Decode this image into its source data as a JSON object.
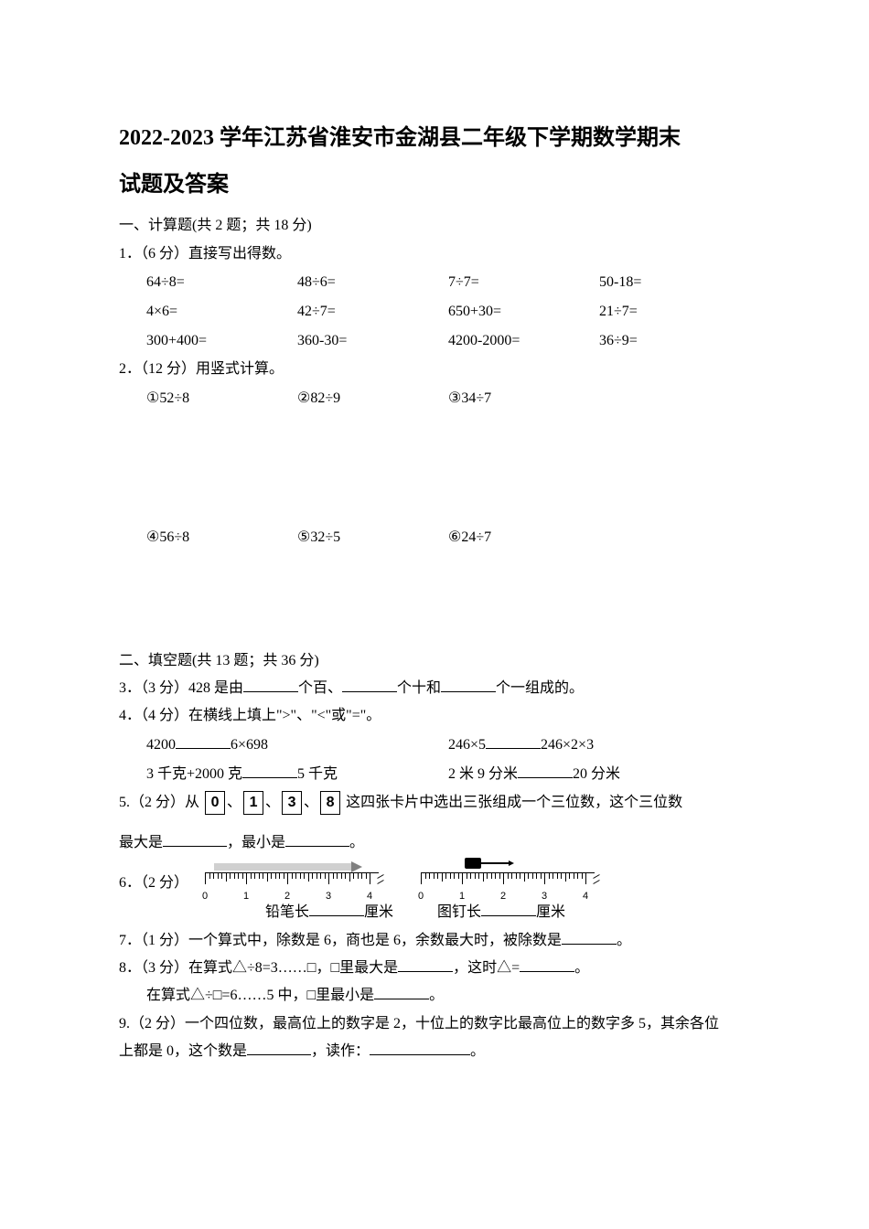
{
  "title_line1": "2022-2023 学年江苏省淮安市金湖县二年级下学期数学期末",
  "title_line2": "试题及答案",
  "section1_header": "一、计算题(共 2 题；共 18 分)",
  "q1_label": "1．（6 分）直接写出得数。",
  "q1_rows": [
    [
      "64÷8=",
      "48÷6=",
      "7÷7=",
      "50-18="
    ],
    [
      "4×6=",
      "42÷7=",
      "650+30=",
      "21÷7="
    ],
    [
      "300+400=",
      "360-30=",
      "4200-2000=",
      "36÷9="
    ]
  ],
  "q2_label": "2．（12 分）用竖式计算。",
  "q2_row1": [
    "①52÷8",
    "②82÷9",
    "③34÷7"
  ],
  "q2_row2": [
    "④56÷8",
    "⑤32÷5",
    "⑥24÷7"
  ],
  "section2_header": "二、填空题(共 13 题；共 36 分)",
  "q3_pre": "3．（3 分）428 是由",
  "q3_mid1": "个百、",
  "q3_mid2": "个十和",
  "q3_end": "个一组成的。",
  "q4_label": "4．（4 分）在横线上填上\">\"、\"<\"或\"=\"。",
  "q4_r1a_l": "4200",
  "q4_r1a_r": "6×698",
  "q4_r1b_l": "246×5",
  "q4_r1b_r": "246×2×3",
  "q4_r2a_l": "3 千克+2000 克",
  "q4_r2a_r": "5 千克",
  "q4_r2b_l": "2 米 9 分米",
  "q4_r2b_r": "20 分米",
  "q5_pre": "5.（2 分）从",
  "q5_cards": [
    "0",
    "1",
    "3",
    "8"
  ],
  "q5_post": "这四张卡片中选出三张组成一个三位数，这个三位数",
  "q5_line2_pre": "最大是",
  "q5_line2_mid": "，最小是",
  "q5_line2_end": "。",
  "q6_label": "6．（2 分）",
  "q6_ruler_labels": [
    "0",
    "1",
    "2",
    "3",
    "4"
  ],
  "q6_pencil_label_pre": "铅笔长",
  "q6_pencil_label_post": "厘米",
  "q6_pin_label_pre": "图钉长",
  "q6_pin_label_post": "厘米",
  "q7_pre": "7．（1 分）一个算式中，除数是 6，商也是 6，余数最大时，被除数是",
  "q7_end": "。",
  "q8_pre": "8．（3 分）在算式△÷8=3……□，□里最大是",
  "q8_mid": "，这时△=",
  "q8_end": "。",
  "q8_line2_pre": "在算式△÷□=6……5 中，□里最小是",
  "q8_line2_end": "。",
  "q9_line1": "9.（2 分）一个四位数，最高位上的数字是 2，十位上的数字比最高位上的数字多 5，其余各位",
  "q9_line2_pre": "上都是 0，这个数是",
  "q9_line2_mid": "，读作：",
  "q9_line2_end": "。",
  "colors": {
    "text": "#000000",
    "background": "#ffffff",
    "pencil_body": "#d0d0d0",
    "pencil_tip": "#808080"
  },
  "fonts": {
    "body_family": "SimSun",
    "body_size_pt": 12,
    "title_size_pt": 18,
    "title_weight": "bold"
  },
  "ruler": {
    "major_ticks": 5,
    "minor_per_major": 10,
    "tick_color": "#000000"
  }
}
